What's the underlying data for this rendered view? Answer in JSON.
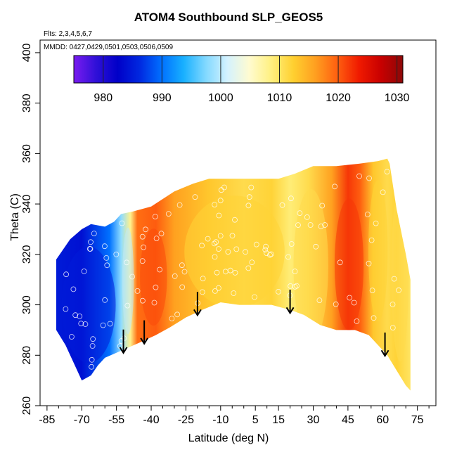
{
  "chart_data": {
    "type": "heatmap",
    "title": "ATOM4 Southbound SLP_GEOS5",
    "annotations": {
      "flights": "Flts: 2,3,4,5,6,7",
      "dates": "MMDD: 0427,0429,0501,0503,0506,0509"
    },
    "xlabel": "Latitude (deg N)",
    "ylabel": "Theta (C)",
    "xlim": [
      -88,
      83
    ],
    "ylim": [
      260,
      405
    ],
    "xticks": [
      -85,
      -70,
      -55,
      -40,
      -25,
      -10,
      5,
      15,
      30,
      45,
      60,
      75
    ],
    "xtick_labels": [
      "-85",
      "-70",
      "-55",
      "-40",
      "-25",
      "-10",
      "5",
      "15",
      "30",
      "45",
      "60",
      "75"
    ],
    "yticks": [
      260,
      280,
      300,
      320,
      340,
      360,
      380,
      400
    ],
    "ytick_labels": [
      "260",
      "280",
      "300",
      "320",
      "340",
      "360",
      "380",
      "400"
    ],
    "colorbar": {
      "min": 975,
      "max": 1031,
      "ticks": [
        980,
        990,
        1000,
        1010,
        1020,
        1030
      ],
      "tick_labels": [
        "980",
        "990",
        "1000",
        "1010",
        "1020",
        "1030"
      ],
      "colors": [
        "#7a1cf0",
        "#3010d8",
        "#0000c8",
        "#0028e0",
        "#0070ff",
        "#18b0ff",
        "#80d8ff",
        "#d4f2ff",
        "#fffbd0",
        "#fff080",
        "#ffd030",
        "#ffa020",
        "#ff6010",
        "#f01a00",
        "#c80000",
        "#8c0808"
      ]
    },
    "field_description": "Sea level pressure colored along theta-latitude cross section",
    "regions": [
      {
        "lat": [
          -81,
          -53
        ],
        "theta": [
          270,
          330
        ],
        "value_hPa": 985
      },
      {
        "lat": [
          -53,
          -47
        ],
        "theta": [
          282,
          337
        ],
        "value_hPa": 1000
      },
      {
        "lat": [
          -46,
          -32
        ],
        "theta": [
          286,
          336
        ],
        "value_hPa": 1021
      },
      {
        "lat": [
          -30,
          22
        ],
        "theta": [
          292,
          350
        ],
        "value_hPa": 1012
      },
      {
        "lat": [
          20,
          38
        ],
        "theta": [
          276,
          355
        ],
        "value_hPa": 1011
      },
      {
        "lat": [
          38,
          53
        ],
        "theta": [
          282,
          350
        ],
        "value_hPa": 1022
      },
      {
        "lat": [
          53,
          63
        ],
        "theta": [
          285,
          358
        ],
        "value_hPa": 1012
      },
      {
        "lat": [
          63,
          72
        ],
        "theta": [
          267,
          358
        ],
        "value_hPa": 1011
      }
    ],
    "vertical_profile_markers_lat": [
      -52,
      -43,
      -20,
      20,
      61
    ],
    "legend": "colorbar top"
  }
}
